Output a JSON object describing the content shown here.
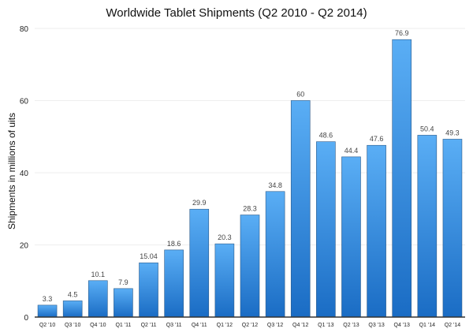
{
  "chart_data": {
    "type": "bar",
    "title": "Worldwide Tablet Shipments (Q2 2010 - Q2 2014)",
    "xlabel": "",
    "ylabel": "Shipments in millions of uits",
    "ylim": [
      0,
      80
    ],
    "yticks": [
      0,
      20,
      40,
      60,
      80
    ],
    "grid": true,
    "categories": [
      "Q2 '10",
      "Q3 '10",
      "Q4 '10",
      "Q1 '11",
      "Q2 '11",
      "Q3 '11",
      "Q4 '11",
      "Q1 '12",
      "Q2 '12",
      "Q3 '12",
      "Q4 '12",
      "Q1 '13",
      "Q2 '13",
      "Q3 '13",
      "Q4 '13",
      "Q1 '14",
      "Q2 '14"
    ],
    "values": [
      3.3,
      4.5,
      10.1,
      7.9,
      15.04,
      18.6,
      29.9,
      20.3,
      28.3,
      34.8,
      60,
      48.6,
      44.4,
      47.6,
      76.9,
      50.4,
      49.3
    ],
    "data_labels": [
      "3.3",
      "4.5",
      "10.1",
      "7.9",
      "15.04",
      "18.6",
      "29.9",
      "20.3",
      "28.3",
      "34.8",
      "60",
      "48.6",
      "44.4",
      "47.6",
      "76.9",
      "50.4",
      "49.3"
    ],
    "colors": {
      "bar_top": "#5aaef5",
      "bar_bottom": "#1a6cc4",
      "bar_edge": "#2a5a8a"
    }
  }
}
